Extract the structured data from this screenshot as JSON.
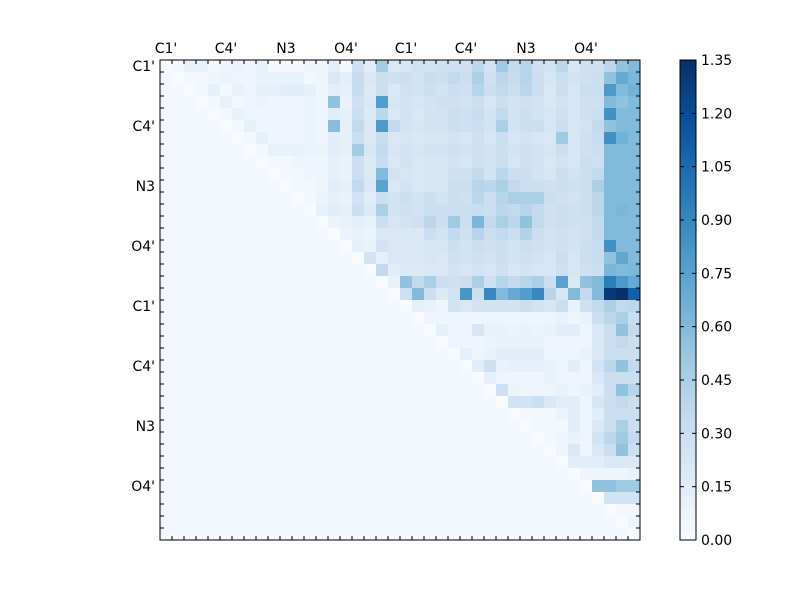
{
  "chart_data": {
    "type": "heatmap",
    "title": "",
    "xlabel": "",
    "ylabel": "",
    "n": 40,
    "x_tick_labels": [
      {
        "index": 0.5,
        "label": "C1'"
      },
      {
        "index": 5.5,
        "label": "C4'"
      },
      {
        "index": 10.5,
        "label": "N3"
      },
      {
        "index": 15.5,
        "label": "O4'"
      },
      {
        "index": 20.5,
        "label": "C1'"
      },
      {
        "index": 25.5,
        "label": "C4'"
      },
      {
        "index": 30.5,
        "label": "N3"
      },
      {
        "index": 35.5,
        "label": "O4'"
      }
    ],
    "y_tick_labels": [
      {
        "index": 0.5,
        "label": "C1'"
      },
      {
        "index": 5.5,
        "label": "C4'"
      },
      {
        "index": 10.5,
        "label": "N3"
      },
      {
        "index": 15.5,
        "label": "O4'"
      },
      {
        "index": 20.5,
        "label": "C1'"
      },
      {
        "index": 25.5,
        "label": "C4'"
      },
      {
        "index": 30.5,
        "label": "N3"
      },
      {
        "index": 35.5,
        "label": "O4'"
      }
    ],
    "colorbar": {
      "min": 0.0,
      "max": 1.35,
      "ticks": [
        "0.00",
        "0.15",
        "0.30",
        "0.45",
        "0.60",
        "0.75",
        "0.90",
        "1.05",
        "1.20",
        "1.35"
      ],
      "colormap": "Blues"
    },
    "baseline": 0.03,
    "rows": [
      {
        "row": 0,
        "cells": "0:0,2:0.1,3:0.1,5:0.06,6:0.08,7:0.06,8:0.1,12:0.06,13:0.06,14:0.14,16:0.28,17:0.15,18:0.48,19:0.2,20:0.22,21:0.27,22:0.25,23:0.28,24:0.28,25:0.28,26:0.38,27:0.25,28:0.5,29:0.35,30:0.4,31:0.28,32:0.25,33:0.38,34:0.22,35:0.28,36:0.28,37:0.38,38:0.55,39:0.6"
      },
      {
        "row": 1,
        "cells": "1:0,4:0.06,5:0.08,6:0.06,7:0.06,8:0.1,9:0.1,10:0.1,11:0.1,13:0.06,14:0.2,15:0.14,16:0.33,17:0.2,18:0.3,19:0.28,20:0.3,21:0.25,22:0.32,23:0.3,24:0.35,25:0.3,26:0.45,27:0.28,28:0.38,29:0.33,30:0.4,31:0.3,32:0.22,33:0.3,34:0.25,35:0.28,36:0.3,37:0.55,38:0.7,39:0.62"
      },
      {
        "row": 2,
        "cells": "2:0,4:0.12,6:0.1,7:0.06,8:0.12,9:0.12,10:0.15,11:0.15,12:0.12,13:0.06,14:0.14,15:0.12,16:0.33,17:0.18,18:0.3,19:0.2,20:0.27,21:0.25,22:0.3,23:0.25,24:0.3,25:0.28,26:0.4,27:0.3,28:0.35,29:0.3,30:0.38,31:0.3,32:0.2,33:0.3,34:0.22,35:0.3,36:0.3,37:0.8,38:0.6,39:0.65"
      },
      {
        "row": 3,
        "cells": "3:0,5:0.1,7:0.06,8:0.08,9:0.06,10:0.06,11:0.06,12:0.08,13:0.06,14:0.55,15:0.1,16:0.28,17:0.2,18:0.78,19:0.22,20:0.25,21:0.22,22:0.25,23:0.28,24:0.28,25:0.25,26:0.3,27:0.22,28:0.3,29:0.25,30:0.28,31:0.25,32:0.2,33:0.25,34:0.22,35:0.28,36:0.28,37:0.6,38:0.55,39:0.6"
      },
      {
        "row": 4,
        "cells": "4:0,6:0.1,7:0.06,8:0.06,9:0.06,10:0.06,11:0.06,12:0.08,13:0.06,14:0.15,15:0.12,16:0.3,17:0.18,18:0.38,19:0.2,20:0.25,21:0.2,22:0.25,23:0.25,24:0.3,25:0.28,26:0.32,27:0.25,28:0.35,29:0.25,30:0.3,31:0.25,32:0.22,33:0.28,34:0.22,35:0.28,36:0.3,37:0.85,38:0.6,39:0.6"
      },
      {
        "row": 5,
        "cells": "5:0,7:0.12,8:0.06,9:0.06,10:0.06,11:0.06,12:0.08,13:0.06,14:0.58,15:0.12,16:0.35,17:0.2,18:0.8,19:0.35,20:0.25,21:0.22,22:0.25,23:0.25,24:0.3,25:0.28,26:0.3,27:0.25,28:0.45,29:0.25,30:0.3,31:0.3,32:0.22,33:0.3,34:0.22,35:0.25,36:0.35,37:0.55,38:0.6,39:0.6"
      },
      {
        "row": 6,
        "cells": "6:0,8:0.12,9:0.06,10:0.06,11:0.06,12:0.08,13:0.06,14:0.15,15:0.12,16:0.3,17:0.2,18:0.32,19:0.2,20:0.22,21:0.2,22:0.22,23:0.22,24:0.25,25:0.22,26:0.28,27:0.22,28:0.3,29:0.22,30:0.25,31:0.22,32:0.2,33:0.5,34:0.22,35:0.28,36:0.32,37:0.85,38:0.65,39:0.6"
      },
      {
        "row": 7,
        "cells": "7:0,9:0.1,10:0.1,11:0.1,12:0.08,13:0.08,14:0.15,15:0.12,16:0.48,17:0.22,18:0.35,19:0.22,20:0.25,21:0.22,22:0.25,23:0.25,24:0.28,25:0.25,26:0.28,27:0.25,28:0.3,29:0.25,30:0.28,31:0.25,32:0.22,33:0.3,34:0.22,35:0.28,36:0.3,37:0.6,38:0.6,39:0.6"
      },
      {
        "row": 8,
        "cells": "8:0,11:0.06,12:0.06,13:0.06,14:0.12,15:0.1,16:0.3,17:0.18,18:0.32,19:0.2,20:0.25,21:0.2,22:0.22,23:0.22,24:0.25,25:0.22,26:0.28,27:0.25,28:0.3,29:0.22,30:0.28,31:0.25,32:0.2,33:0.25,34:0.22,35:0.3,36:0.28,37:0.6,38:0.6,39:0.6"
      },
      {
        "row": 9,
        "cells": "9:0,12:0.06,13:0.06,14:0.12,15:0.1,16:0.3,17:0.18,18:0.6,19:0.25,20:0.22,21:0.2,22:0.22,23:0.22,24:0.28,25:0.28,26:0.35,27:0.25,28:0.38,29:0.3,30:0.3,31:0.25,32:0.22,33:0.3,34:0.25,35:0.3,36:0.35,37:0.6,38:0.6,39:0.6"
      },
      {
        "row": 10,
        "cells": "10:0,13:0.06,14:0.15,15:0.12,16:0.35,17:0.2,18:0.75,19:0.2,20:0.25,21:0.2,22:0.22,23:0.22,24:0.3,25:0.3,26:0.4,27:0.38,28:0.45,29:0.35,30:0.3,31:0.3,32:0.28,33:0.3,34:0.28,35:0.3,36:0.45,37:0.6,38:0.6,39:0.6"
      },
      {
        "row": 11,
        "cells": "11:0,13:0.08,14:0.12,15:0.1,16:0.25,17:0.15,18:0.3,19:0.25,20:0.3,21:0.25,22:0.3,23:0.25,24:0.3,25:0.28,26:0.38,27:0.3,28:0.4,29:0.45,30:0.45,31:0.45,32:0.3,33:0.28,34:0.25,35:0.3,36:0.38,37:0.6,38:0.6,39:0.6"
      },
      {
        "row": 12,
        "cells": "12:0,13:0.1,14:0.15,15:0.12,16:0.3,17:0.18,18:0.45,19:0.25,20:0.28,21:0.25,22:0.3,23:0.3,24:0.3,25:0.3,26:0.32,27:0.3,28:0.38,29:0.35,30:0.4,31:0.35,32:0.28,33:0.3,34:0.28,35:0.3,36:0.38,37:0.6,38:0.62,39:0.6"
      },
      {
        "row": 13,
        "cells": "13:0,14:0.08,15:0.1,16:0.14,17:0.1,18:0.3,19:0.22,20:0.25,21:0.28,22:0.38,23:0.3,24:0.5,25:0.3,26:0.62,27:0.35,28:0.45,29:0.38,30:0.55,31:0.35,32:0.28,33:0.3,34:0.28,35:0.28,36:0.35,37:0.6,38:0.6,39:0.6"
      },
      {
        "row": 14,
        "cells": "14:0,15:0.08,16:0.1,17:0.08,18:0.2,19:0.2,20:0.2,21:0.2,22:0.3,23:0.25,24:0.35,25:0.28,26:0.4,27:0.3,28:0.35,29:0.3,30:0.42,31:0.3,32:0.25,33:0.28,34:0.25,35:0.28,36:0.35,37:0.6,38:0.6,39:0.6"
      },
      {
        "row": 15,
        "cells": "15:0,16:0.12,17:0.1,18:0.25,19:0.2,20:0.2,21:0.2,22:0.22,23:0.22,24:0.3,25:0.25,26:0.3,27:0.28,28:0.3,29:0.25,30:0.3,31:0.28,32:0.25,33:0.28,34:0.25,35:0.3,36:0.32,37:0.85,38:0.6,39:0.6"
      },
      {
        "row": 16,
        "cells": "16:0,17:0.25,18:0.12,19:0.2,20:0.2,21:0.2,22:0.22,23:0.2,24:0.28,25:0.25,26:0.28,27:0.25,28:0.3,29:0.25,30:0.28,31:0.25,32:0.22,33:0.3,34:0.22,35:0.3,36:0.32,37:0.55,38:0.72,39:0.6"
      },
      {
        "row": 17,
        "cells": "17:0,18:0.35,19:0.15,20:0.18,21:0.18,22:0.2,23:0.2,24:0.25,25:0.22,26:0.25,27:0.22,28:0.28,29:0.22,30:0.25,31:0.22,32:0.22,33:0.28,34:0.22,35:0.28,36:0.3,37:0.62,38:0.6,39:0.62"
      },
      {
        "row": 18,
        "cells": "18:0,19:0.1,20:0.55,21:0.35,22:0.45,23:0.3,24:0.28,25:0.3,26:0.45,27:0.28,28:0.4,29:0.35,30:0.4,31:0.45,32:0.3,33:0.75,34:0.2,35:0.55,36:0.6,37:0.95,38:0.8,39:0.7"
      },
      {
        "row": 19,
        "cells": "19:0,20:0.28,21:0.6,22:0.3,23:0.18,24:0.25,25:0.82,26:0.3,27:0.9,28:0.6,29:0.7,30:0.78,31:0.9,32:0.4,33:0.22,34:0.6,35:0.35,36:0.6,37:1.3,38:1.35,39:1.1"
      },
      {
        "row": 20,
        "cells": "20:0,21:0.12,22:0.1,23:0.06,24:0.25,25:0.2,26:0.25,27:0.25,28:0.25,29:0.25,30:0.3,31:0.25,32:0.22,33:0.3,34:0.1,35:0.28,36:0.35,37:0.45,38:0.35,39:0.38"
      },
      {
        "row": 21,
        "cells": "21:0,22:0.06,23:0.06,24:0.06,25:0.06,26:0.06,27:0.06,28:0.06,29:0.06,30:0.06,31:0.06,32:0.06,33:0.1,34:0.06,35:0.1,36:0.3,37:0.38,38:0.45,39:0.32"
      },
      {
        "row": 22,
        "cells": "22:0,23:0.12,24:0.06,25:0.06,26:0.22,27:0.1,28:0.1,29:0.08,30:0.1,31:0.08,32:0.1,33:0.15,34:0.15,35:0.06,36:0.2,37:0.3,38:0.55,39:0.35"
      },
      {
        "row": 23,
        "cells": "23:0,24:0.06,25:0.06,26:0.06,27:0.08,28:0.1,29:0.1,30:0.1,31:0.1,32:0.06,33:0.06,34:0.06,35:0.06,36:0.2,37:0.3,38:0.35,39:0.3"
      },
      {
        "row": 24,
        "cells": "24:0,25:0.12,26:0.06,27:0.1,28:0.15,29:0.15,30:0.15,31:0.15,32:0.06,33:0.06,34:0.06,35:0.1,36:0.2,37:0.3,38:0.3,39:0.3"
      },
      {
        "row": 25,
        "cells": "25:0,26:0.15,27:0.28,28:0.1,29:0.12,30:0.12,31:0.12,32:0.1,33:0.06,34:0.15,35:0.06,36:0.25,37:0.38,38:0.55,39:0.35"
      },
      {
        "row": 26,
        "cells": "26:0,27:0.12,28:0.06,29:0.06,30:0.06,31:0.06,32:0.1,33:0.06,34:0.06,35:0.06,36:0.2,37:0.3,38:0.3,39:0.3"
      },
      {
        "row": 27,
        "cells": "27:0,28:0.28,29:0.08,30:0.06,31:0.06,32:0.06,33:0.1,34:0.06,35:0.1,36:0.15,37:0.3,38:0.55,39:0.4"
      },
      {
        "row": 28,
        "cells": "28:0,29:0.25,30:0.25,31:0.3,32:0.2,33:0.15,34:0.15,35:0.06,36:0.22,37:0.3,38:0.35,39:0.3"
      },
      {
        "row": 29,
        "cells": "29:0,33:0.08,34:0.15,35:0.06,36:0.15,37:0.3,38:0.3,39:0.3"
      },
      {
        "row": 30,
        "cells": "30:0,34:0.15,35:0.06,36:0.2,37:0.3,38:0.45,39:0.3"
      },
      {
        "row": 31,
        "cells": "31:0,33:0.06,34:0.1,35:0.06,36:0.25,37:0.38,38:0.5,39:0.35"
      },
      {
        "row": 32,
        "cells": "32:0,33:0.06,34:0.2,35:0.06,36:0.2,37:0.3,38:0.55,39:0.3"
      },
      {
        "row": 33,
        "cells": "33:0,34:0.15,35:0.15,36:0.15,37:0.2,38:0.2,39:0.2"
      },
      {
        "row": 34,
        "cells": "34:0,35:0.06,36:0.06,37:0.06,38:0.06,39:0.1"
      },
      {
        "row": 35,
        "cells": "35:0,36:0.55,37:0.55,38:0.5,39:0.5"
      },
      {
        "row": 36,
        "cells": "36:0,37:0.25,38:0.25,39:0.25"
      },
      {
        "row": 37,
        "cells": "37:0"
      },
      {
        "row": 38,
        "cells": "38:0,39:0.06"
      },
      {
        "row": 39,
        "cells": "39:0"
      }
    ]
  }
}
